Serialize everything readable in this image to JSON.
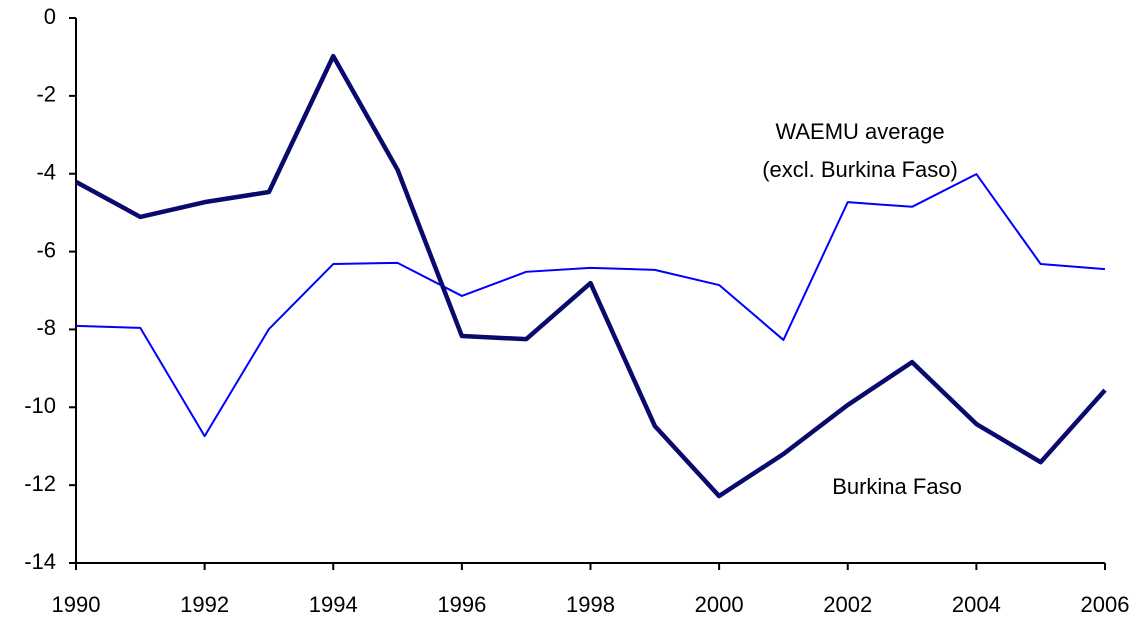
{
  "chart_data": {
    "type": "line",
    "x": [
      1990,
      1991,
      1992,
      1993,
      1994,
      1995,
      1996,
      1997,
      1998,
      1999,
      2000,
      2001,
      2002,
      2003,
      2004,
      2005,
      2006
    ],
    "series": [
      {
        "name": "Burkina Faso",
        "color": "#0a0a6e",
        "width": 4.5,
        "values": [
          -4.21,
          -5.11,
          -4.73,
          -4.47,
          -0.98,
          -3.9,
          -8.17,
          -8.25,
          -6.81,
          -10.48,
          -12.28,
          -11.2,
          -9.94,
          -8.84,
          -10.43,
          -11.41,
          -9.56
        ]
      },
      {
        "name": "WAEMU average",
        "note": "(excl. Burkina Faso)",
        "color": "#0000ff",
        "width": 2,
        "values": [
          -7.91,
          -7.96,
          -10.74,
          -7.99,
          -6.32,
          -6.29,
          -7.14,
          -6.52,
          -6.42,
          -6.47,
          -6.86,
          -8.27,
          -4.73,
          -4.85,
          -4.01,
          -6.32,
          -6.45
        ]
      }
    ],
    "xlim": [
      1990,
      2006
    ],
    "xticks": [
      1990,
      1992,
      1994,
      1996,
      1998,
      2000,
      2002,
      2004,
      2006
    ],
    "ylim": [
      -14,
      0
    ],
    "yticks": [
      0,
      -2,
      -4,
      -6,
      -8,
      -10,
      -12,
      -14
    ],
    "grid": false
  }
}
